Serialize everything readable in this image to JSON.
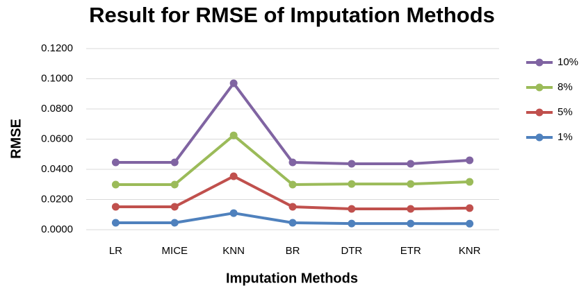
{
  "chart_data": {
    "type": "line",
    "title": "Result for RMSE of Imputation Methods",
    "xlabel": "Imputation Methods",
    "ylabel": "RMSE",
    "categories": [
      "LR",
      "MICE",
      "KNN",
      "BR",
      "DTR",
      "ETR",
      "KNR"
    ],
    "series": [
      {
        "name": "10%",
        "color": "#8064a2",
        "values": [
          0.0446,
          0.0446,
          0.097,
          0.0446,
          0.0437,
          0.0437,
          0.046
        ]
      },
      {
        "name": "8%",
        "color": "#9bbb59",
        "values": [
          0.0299,
          0.0299,
          0.0625,
          0.0299,
          0.0303,
          0.0303,
          0.0317
        ]
      },
      {
        "name": "5%",
        "color": "#c0504d",
        "values": [
          0.0152,
          0.0152,
          0.0354,
          0.0152,
          0.0138,
          0.0138,
          0.0143
        ]
      },
      {
        "name": "1%",
        "color": "#4f81bd",
        "values": [
          0.0046,
          0.0046,
          0.011,
          0.0046,
          0.0041,
          0.0041,
          0.004
        ]
      }
    ],
    "ylim": [
      0,
      0.12
    ],
    "yticks": [
      {
        "value": 0,
        "label": "0.0000"
      },
      {
        "value": 0.02,
        "label": "0.0200"
      },
      {
        "value": 0.04,
        "label": "0.0400"
      },
      {
        "value": 0.06,
        "label": "0.0600"
      },
      {
        "value": 0.08,
        "label": "0.0800"
      },
      {
        "value": 0.1,
        "label": "0.1000"
      },
      {
        "value": 0.12,
        "label": "0.1200"
      }
    ],
    "grid": true,
    "legend": "right"
  }
}
